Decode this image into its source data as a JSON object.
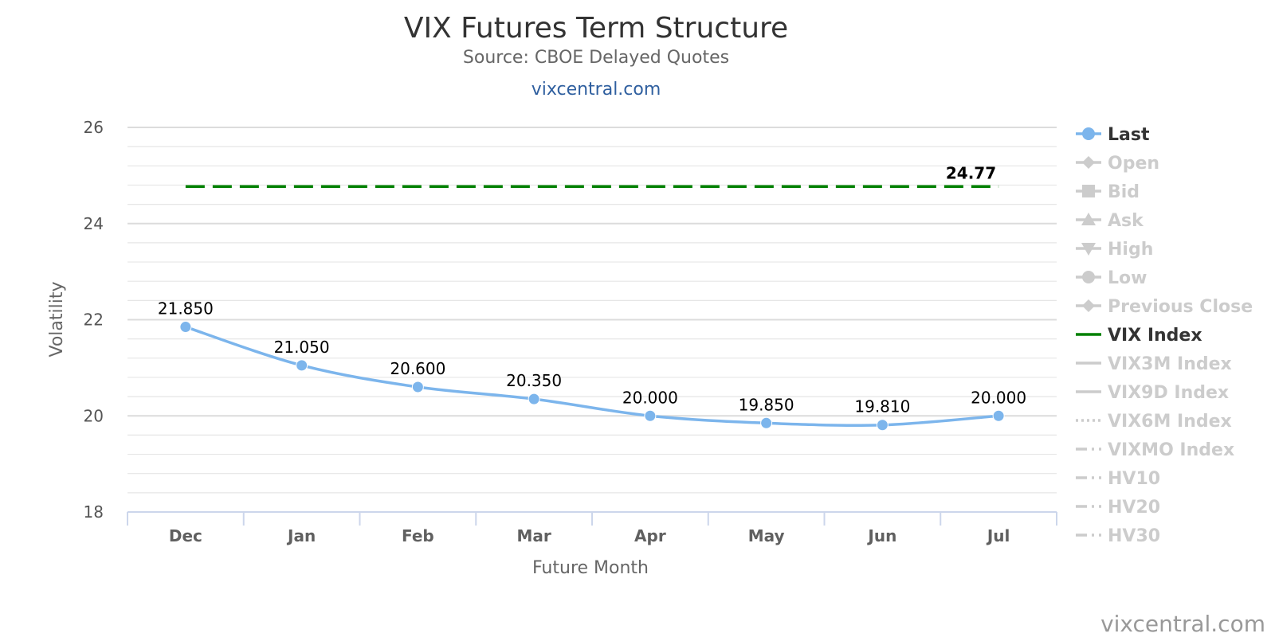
{
  "chart_data": {
    "type": "line",
    "title": "VIX Futures Term Structure",
    "subtitle": "Source: CBOE Delayed Quotes",
    "link": "vixcentral.com",
    "credit": "vixcentral.com",
    "xlabel": "Future Month",
    "ylabel": "Volatility",
    "categories": [
      "Dec",
      "Jan",
      "Feb",
      "Mar",
      "Apr",
      "May",
      "Jun",
      "Jul"
    ],
    "ylim": [
      18,
      26
    ],
    "yticks": [
      18,
      20,
      22,
      24,
      26
    ],
    "grid": true,
    "legend_position": "right",
    "series": [
      {
        "name": "Last",
        "values": [
          21.85,
          21.05,
          20.6,
          20.35,
          20.0,
          19.85,
          19.81,
          20.0
        ],
        "labels": [
          "21.850",
          "21.050",
          "20.600",
          "20.350",
          "20.000",
          "19.850",
          "19.810",
          "20.000"
        ],
        "color": "#7cb5ec",
        "style": "spline-markers"
      },
      {
        "name": "VIX Index",
        "values": [
          24.77,
          24.77,
          24.77,
          24.77,
          24.77,
          24.77,
          24.77,
          24.77
        ],
        "end_label": "24.77",
        "color": "#008000",
        "style": "dashed"
      }
    ],
    "legend": [
      {
        "name": "Last",
        "active": true,
        "color": "#7cb5ec",
        "symbol": "circle-line"
      },
      {
        "name": "Open",
        "active": false,
        "color": "#cccccc",
        "symbol": "diamond-line"
      },
      {
        "name": "Bid",
        "active": false,
        "color": "#cccccc",
        "symbol": "square-line"
      },
      {
        "name": "Ask",
        "active": false,
        "color": "#cccccc",
        "symbol": "triangle-line"
      },
      {
        "name": "High",
        "active": false,
        "color": "#cccccc",
        "symbol": "triangle-down-line"
      },
      {
        "name": "Low",
        "active": false,
        "color": "#cccccc",
        "symbol": "circle-line"
      },
      {
        "name": "Previous Close",
        "active": false,
        "color": "#cccccc",
        "symbol": "diamond-line"
      },
      {
        "name": "VIX Index",
        "active": true,
        "color": "#008000",
        "symbol": "line"
      },
      {
        "name": "VIX3M Index",
        "active": false,
        "color": "#cccccc",
        "symbol": "line"
      },
      {
        "name": "VIX9D Index",
        "active": false,
        "color": "#cccccc",
        "symbol": "line"
      },
      {
        "name": "VIX6M Index",
        "active": false,
        "color": "#cccccc",
        "symbol": "dotted"
      },
      {
        "name": "VIXMO Index",
        "active": false,
        "color": "#cccccc",
        "symbol": "dashdot"
      },
      {
        "name": "HV10",
        "active": false,
        "color": "#cccccc",
        "symbol": "dashdot"
      },
      {
        "name": "HV20",
        "active": false,
        "color": "#cccccc",
        "symbol": "dashdot"
      },
      {
        "name": "HV30",
        "active": false,
        "color": "#cccccc",
        "symbol": "dashdot"
      }
    ]
  }
}
